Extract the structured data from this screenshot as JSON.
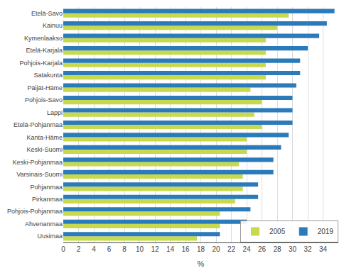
{
  "chart_data": {
    "type": "bar",
    "orientation": "horizontal",
    "categories": [
      "Uusimaa",
      "Ahvenanmaa",
      "Pohjois-Pohjanmaa",
      "Pirkanmaa",
      "Pohjanmaa",
      "Varsinais-Suomi",
      "Keski-Pohjanmaa",
      "Keski-Suomi",
      "Kanta-Häme",
      "Etelä-Pohjanmaa",
      "Lappi",
      "Pohjois-Savo",
      "Päijät-Häme",
      "Satakunta",
      "Pohjois-Karjala",
      "Etelä-Karjala",
      "Kymenlaakso",
      "Kainuu",
      "Etelä-Savo"
    ],
    "series": [
      {
        "name": "2005",
        "color": "#c8d94e",
        "values": [
          17.5,
          20.5,
          20.5,
          22.5,
          23.5,
          23.5,
          23.0,
          24.0,
          24.0,
          26.0,
          25.0,
          26.0,
          24.5,
          26.5,
          26.5,
          26.5,
          26.5,
          28.0,
          29.5
        ]
      },
      {
        "name": "2019",
        "color": "#2b7bba",
        "values": [
          20.5,
          24.0,
          24.5,
          25.5,
          25.5,
          27.5,
          27.5,
          28.5,
          29.5,
          30.0,
          30.0,
          30.0,
          30.5,
          31.0,
          31.0,
          32.0,
          33.5,
          34.5,
          35.5
        ]
      }
    ],
    "xlabel": "%",
    "xlim": [
      0,
      36
    ],
    "xticks": [
      0,
      2,
      4,
      6,
      8,
      10,
      12,
      14,
      16,
      18,
      20,
      22,
      24,
      26,
      28,
      30,
      32,
      34
    ],
    "grid": true,
    "legend": "lower right"
  }
}
